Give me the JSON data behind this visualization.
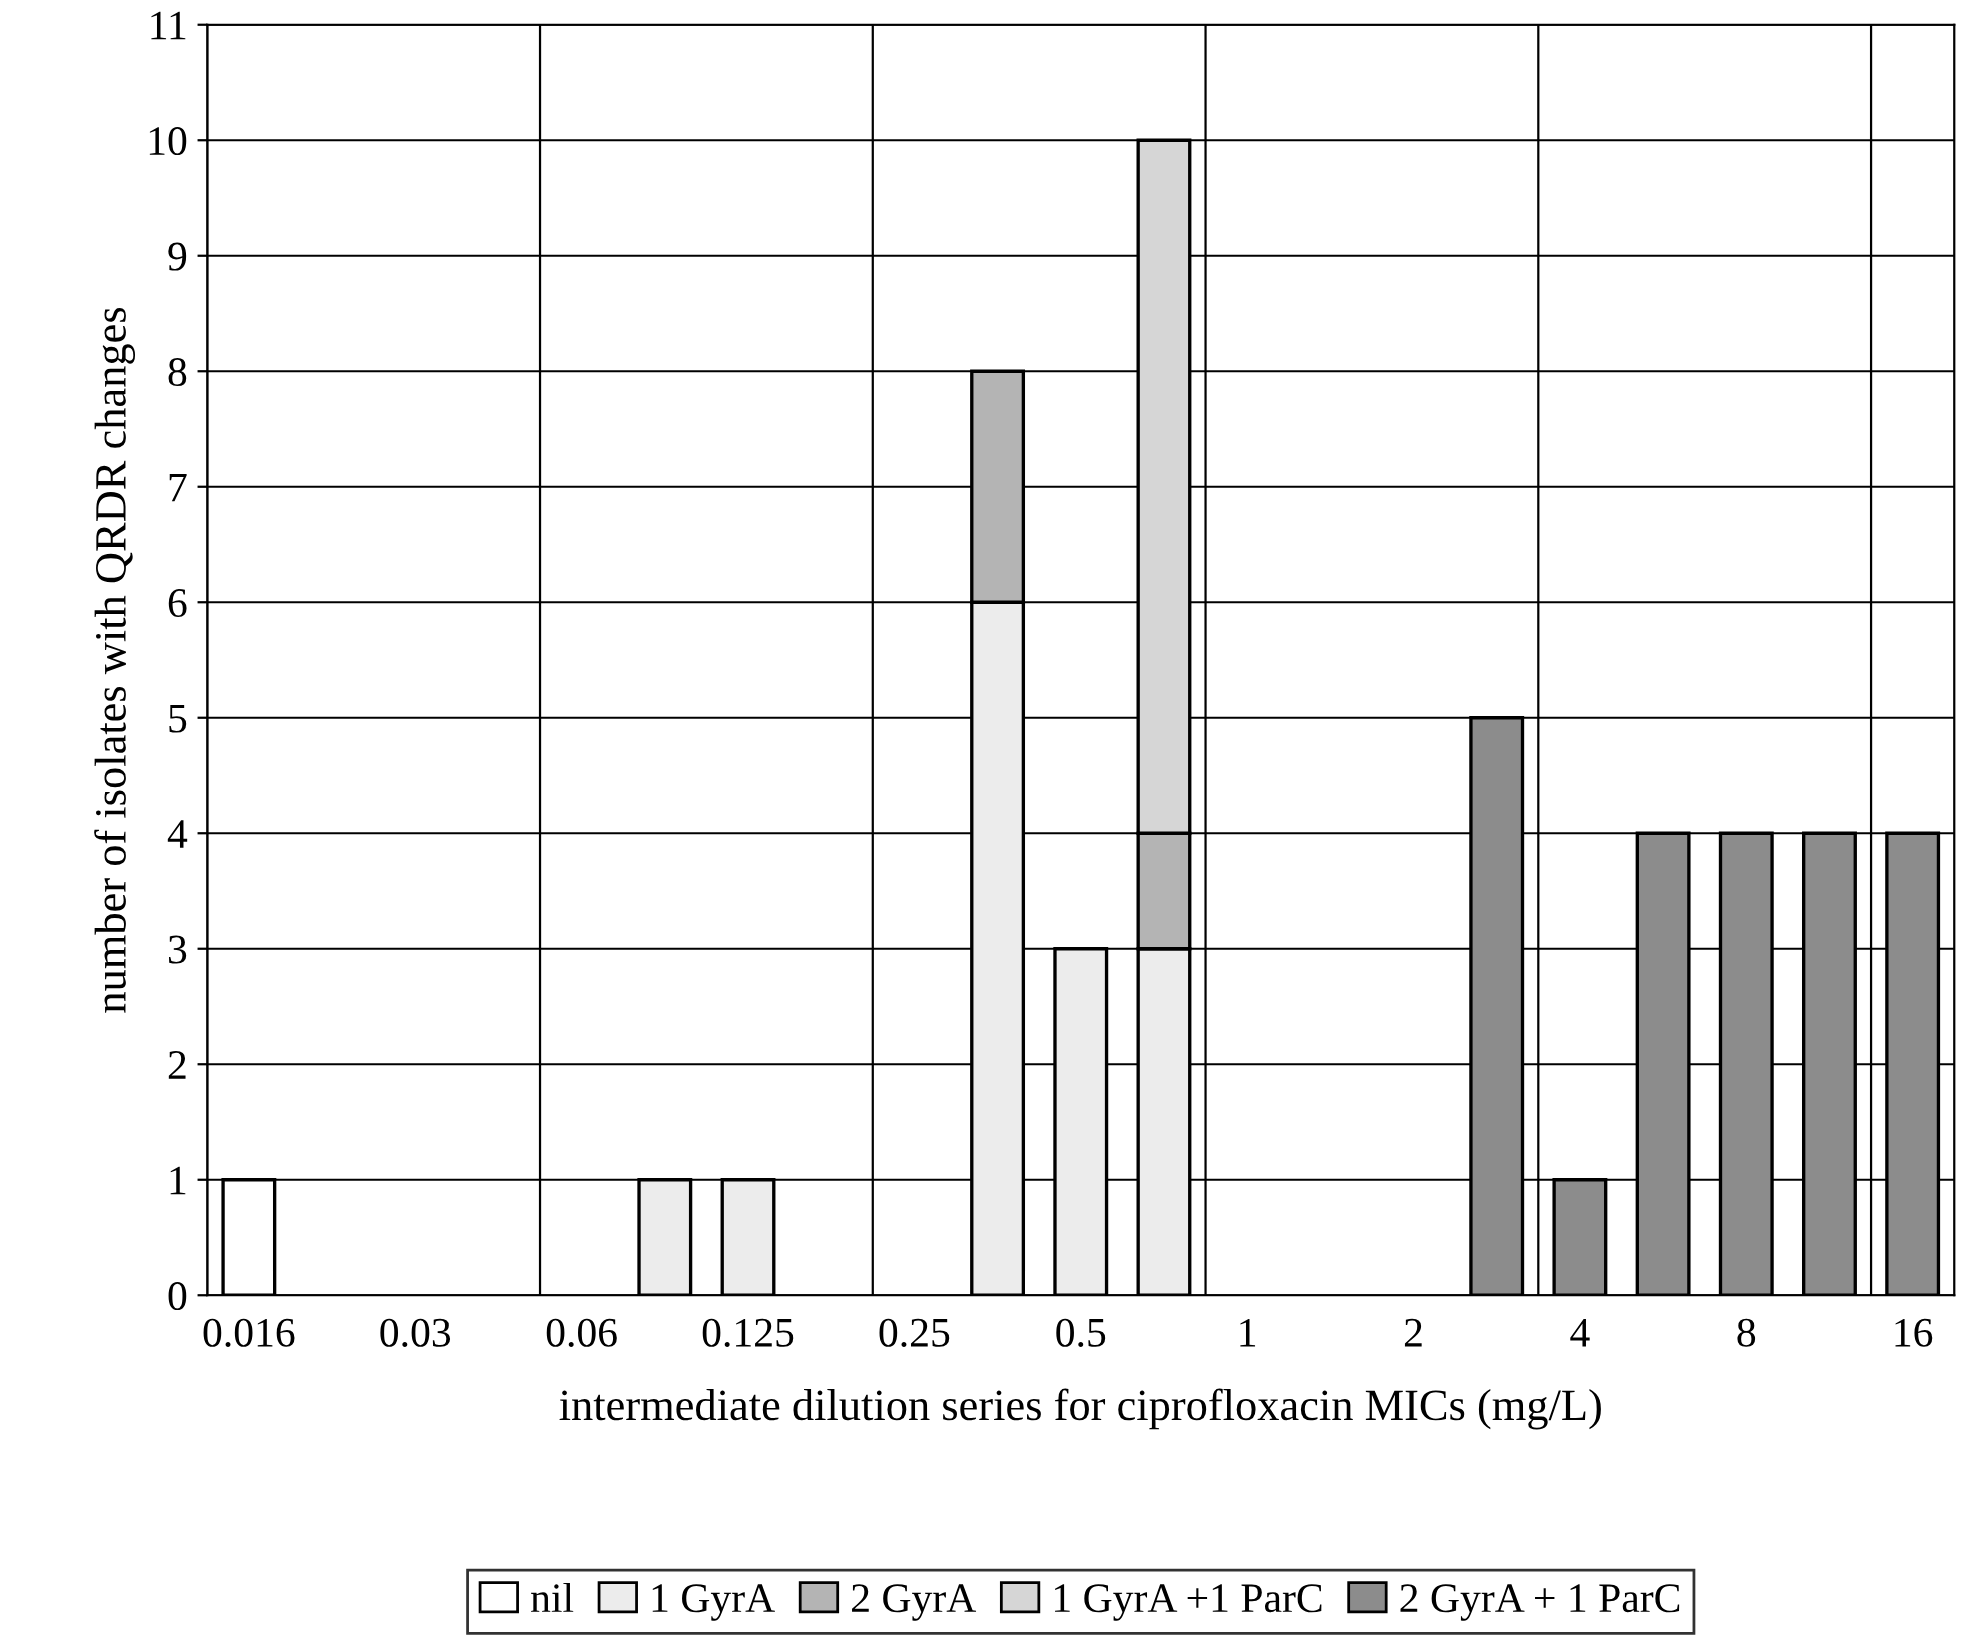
{
  "chart_data": {
    "type": "bar",
    "stacked": true,
    "xlabel": "intermediate dilution series for ciprofloxacin MICs (mg/L)",
    "ylabel": "number of isolates with QRDR changes",
    "categories": [
      "0.016",
      null,
      "0.03",
      null,
      "0.06",
      null,
      "0.125",
      null,
      "0.25",
      null,
      "0.5",
      null,
      "1",
      null,
      "2",
      null,
      "4",
      null,
      "8",
      null,
      "16"
    ],
    "series": [
      {
        "name": "nil",
        "color": "#ffffff",
        "values": [
          1,
          null,
          null,
          null,
          null,
          null,
          null,
          null,
          null,
          null,
          null,
          null,
          null,
          null,
          null,
          null,
          null,
          null,
          null,
          null,
          null
        ]
      },
      {
        "name": "1 GyrA",
        "color": "#ececec",
        "values": [
          null,
          null,
          null,
          null,
          null,
          1,
          1,
          null,
          null,
          6,
          3,
          3,
          null,
          null,
          null,
          null,
          null,
          null,
          null,
          null,
          null
        ]
      },
      {
        "name": "2 GyrA",
        "color": "#b4b4b4",
        "values": [
          null,
          null,
          null,
          null,
          null,
          null,
          null,
          null,
          null,
          2,
          null,
          1,
          null,
          null,
          null,
          null,
          null,
          null,
          null,
          null,
          null
        ]
      },
      {
        "name": "1 GyrA +1 ParC",
        "color": "#d6d6d6",
        "values": [
          null,
          null,
          null,
          null,
          null,
          null,
          null,
          null,
          null,
          null,
          null,
          6,
          null,
          null,
          null,
          null,
          null,
          null,
          null,
          null,
          null
        ]
      },
      {
        "name": "2 GyrA + 1 ParC",
        "color": "#8c8c8c",
        "values": [
          null,
          null,
          null,
          null,
          null,
          null,
          null,
          null,
          null,
          null,
          null,
          null,
          null,
          null,
          null,
          5,
          1,
          4,
          4,
          4,
          4
        ]
      }
    ],
    "ylim": [
      0,
      11
    ],
    "yticks": [
      0,
      1,
      2,
      3,
      4,
      5,
      6,
      7,
      8,
      9,
      10,
      11
    ],
    "grid": true,
    "legend": "bottom"
  }
}
